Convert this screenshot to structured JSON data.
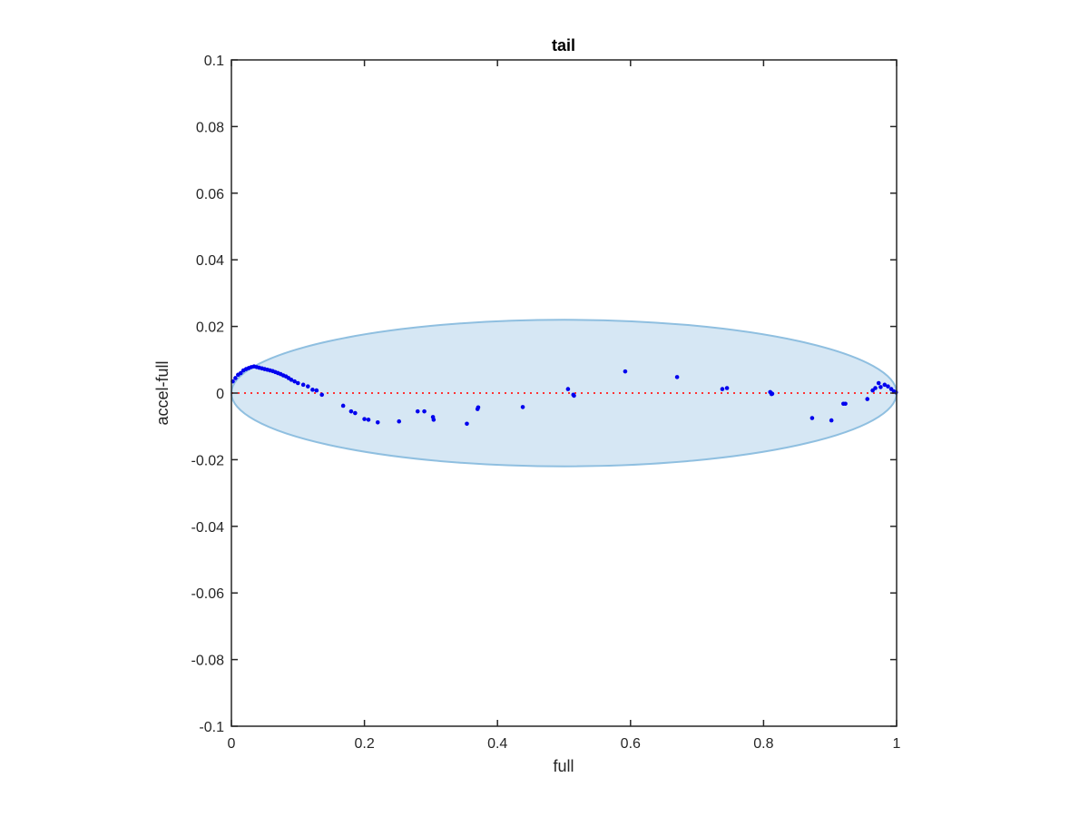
{
  "chart_data": {
    "type": "scatter",
    "title": "tail",
    "xlabel": "full",
    "ylabel": "accel-full",
    "xlim": [
      0,
      1
    ],
    "ylim": [
      -0.1,
      0.1
    ],
    "grid": false,
    "x_ticks": [
      0,
      0.2,
      0.4,
      0.6,
      0.8,
      1
    ],
    "x_tick_labels": [
      "0",
      "0.2",
      "0.4",
      "0.6",
      "0.8",
      "1"
    ],
    "y_ticks": [
      -0.1,
      -0.08,
      -0.06,
      -0.04,
      -0.02,
      0,
      0.02,
      0.04,
      0.06,
      0.08,
      0.1
    ],
    "y_tick_labels": [
      "-0.1",
      "-0.08",
      "-0.06",
      "-0.04",
      "-0.02",
      "0",
      "0.02",
      "0.04",
      "0.06",
      "0.08",
      "0.1"
    ],
    "ellipse": {
      "center": [
        0.5,
        0
      ],
      "rx": 0.5,
      "ry": 0.022,
      "fill": "#d6e7f4",
      "stroke": "#8fbfe0"
    },
    "zero_line": {
      "y": 0,
      "color": "#ff3333"
    },
    "series": [
      {
        "color": "#0000ee",
        "points": [
          [
            0.002,
            0.0035
          ],
          [
            0.006,
            0.0045
          ],
          [
            0.01,
            0.0055
          ],
          [
            0.014,
            0.006
          ],
          [
            0.018,
            0.0068
          ],
          [
            0.022,
            0.0072
          ],
          [
            0.026,
            0.0075
          ],
          [
            0.03,
            0.0078
          ],
          [
            0.034,
            0.008
          ],
          [
            0.038,
            0.0078
          ],
          [
            0.042,
            0.0076
          ],
          [
            0.046,
            0.0074
          ],
          [
            0.05,
            0.0072
          ],
          [
            0.054,
            0.007
          ],
          [
            0.058,
            0.0068
          ],
          [
            0.062,
            0.0066
          ],
          [
            0.066,
            0.0063
          ],
          [
            0.07,
            0.006
          ],
          [
            0.074,
            0.0057
          ],
          [
            0.078,
            0.0053
          ],
          [
            0.082,
            0.005
          ],
          [
            0.086,
            0.0045
          ],
          [
            0.09,
            0.004
          ],
          [
            0.095,
            0.0035
          ],
          [
            0.1,
            0.003
          ],
          [
            0.108,
            0.0025
          ],
          [
            0.115,
            0.002
          ],
          [
            0.122,
            0.001
          ],
          [
            0.128,
            0.0008
          ],
          [
            0.136,
            -0.0005
          ],
          [
            0.168,
            -0.0038
          ],
          [
            0.18,
            -0.0055
          ],
          [
            0.186,
            -0.006
          ],
          [
            0.2,
            -0.0078
          ],
          [
            0.206,
            -0.008
          ],
          [
            0.22,
            -0.0088
          ],
          [
            0.252,
            -0.0085
          ],
          [
            0.28,
            -0.0055
          ],
          [
            0.29,
            -0.0055
          ],
          [
            0.303,
            -0.0072
          ],
          [
            0.304,
            -0.008
          ],
          [
            0.354,
            -0.0092
          ],
          [
            0.37,
            -0.0048
          ],
          [
            0.371,
            -0.0043
          ],
          [
            0.438,
            -0.0042
          ],
          [
            0.506,
            0.0012
          ],
          [
            0.514,
            -0.0005
          ],
          [
            0.515,
            -0.0008
          ],
          [
            0.592,
            0.0065
          ],
          [
            0.67,
            0.0048
          ],
          [
            0.738,
            0.0012
          ],
          [
            0.745,
            0.0015
          ],
          [
            0.81,
            0.0003
          ],
          [
            0.812,
            -0.0003
          ],
          [
            0.813,
            -0.0002
          ],
          [
            0.873,
            -0.0075
          ],
          [
            0.902,
            -0.0082
          ],
          [
            0.92,
            -0.0032
          ],
          [
            0.923,
            -0.0032
          ],
          [
            0.956,
            -0.0018
          ],
          [
            0.964,
            0.0008
          ],
          [
            0.968,
            0.0015
          ],
          [
            0.973,
            0.003
          ],
          [
            0.976,
            0.0018
          ],
          [
            0.982,
            0.0025
          ],
          [
            0.987,
            0.002
          ],
          [
            0.992,
            0.0012
          ],
          [
            0.996,
            0.0005
          ],
          [
            0.999,
            0.0002
          ]
        ]
      }
    ]
  }
}
